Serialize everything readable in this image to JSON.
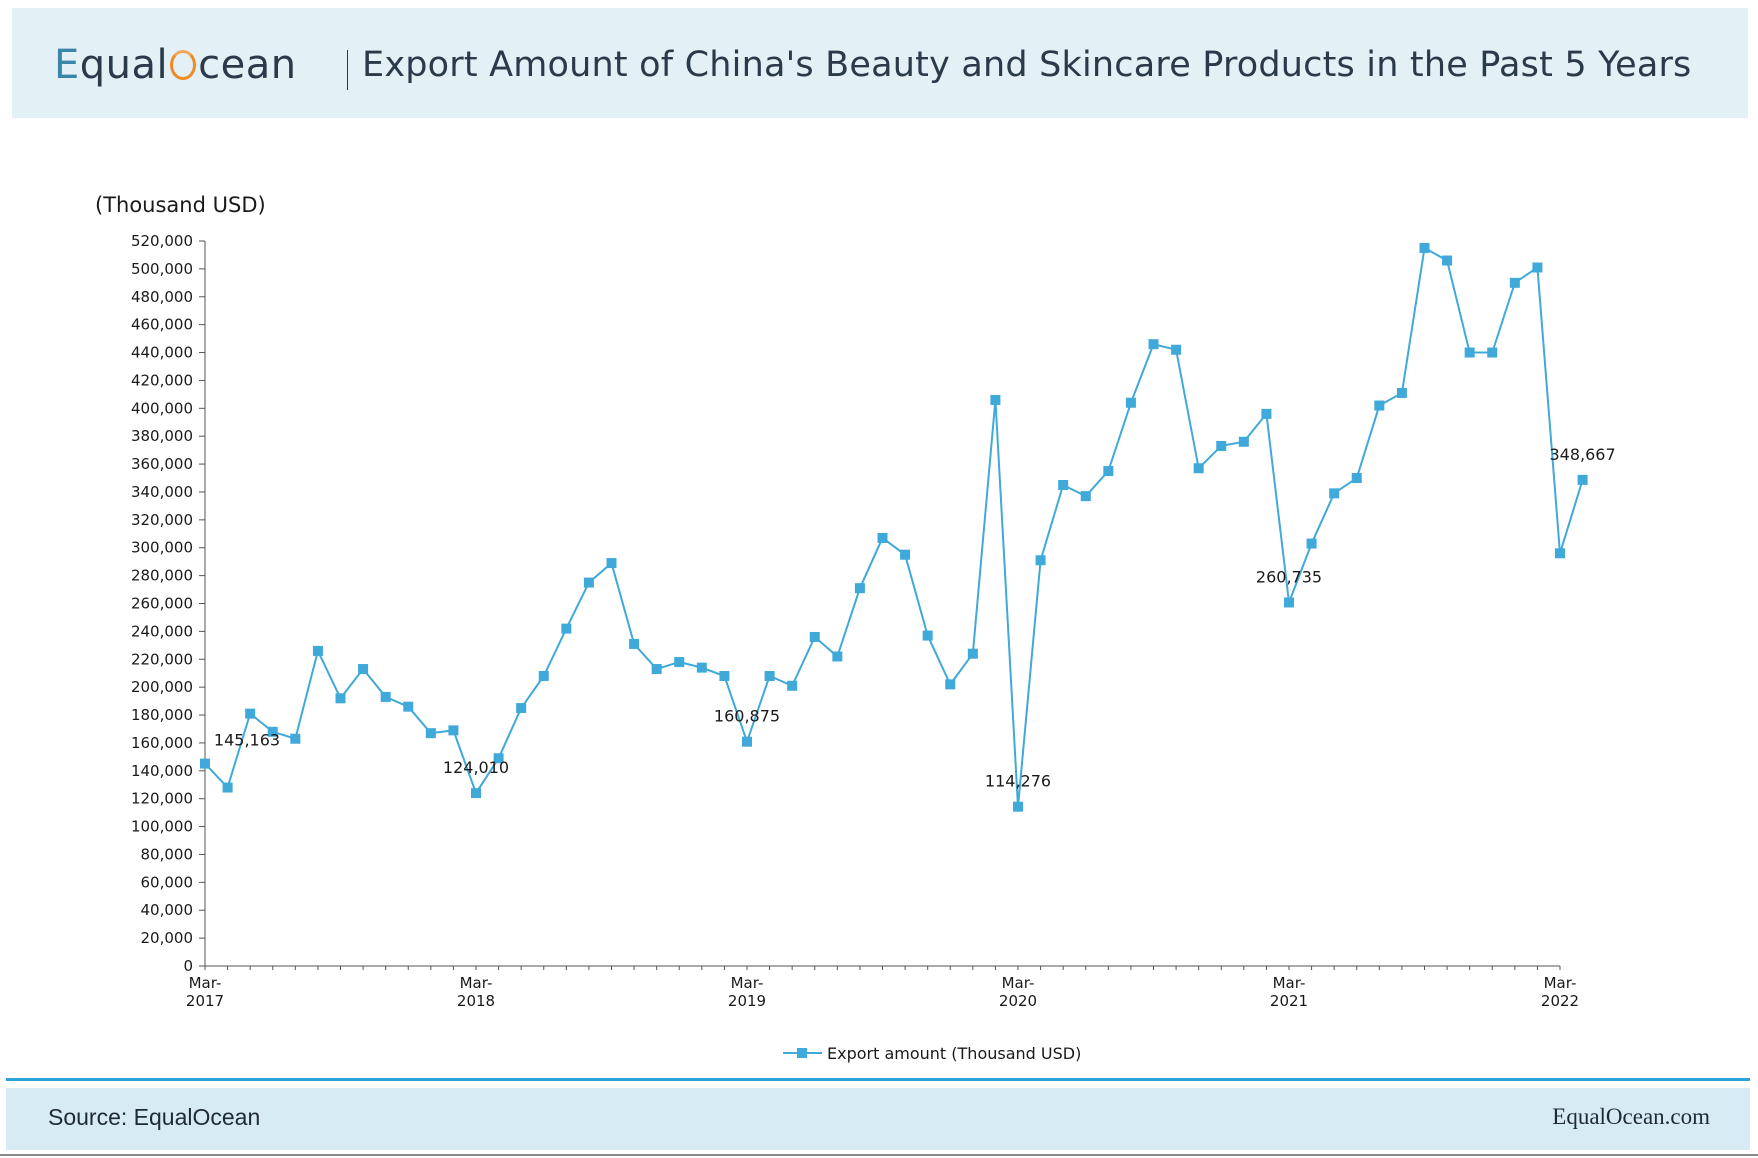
{
  "header": {
    "logo_text": "EqualOcean",
    "title": "Export Amount of China's Beauty and Skincare Products in the Past 5 Years"
  },
  "footer": {
    "source": "Source: EqualOcean",
    "site": "EqualOcean.com"
  },
  "colors": {
    "series": "#3fa9d9",
    "header_bg": "#e3f1f7",
    "footer_bg": "#d7ebf4",
    "accent_rule": "#2aa4d8",
    "logo_o": "#f08a24"
  },
  "chart_data": {
    "type": "line",
    "title": "Export Amount of China's Beauty and Skincare Products in the Past 5 Years",
    "ylabel": "(Thousand USD)",
    "xlabel": "",
    "ylim": [
      0,
      520000
    ],
    "ytick_step": 20000,
    "grid": false,
    "legend": "bottom-center",
    "x_tick_labels": [
      {
        "month": "Mar-",
        "year": "2017"
      },
      {
        "month": "Mar-",
        "year": "2018"
      },
      {
        "month": "Mar-",
        "year": "2019"
      },
      {
        "month": "Mar-",
        "year": "2020"
      },
      {
        "month": "Mar-",
        "year": "2021"
      },
      {
        "month": "Mar-",
        "year": "2022"
      }
    ],
    "x_start": "Mar-2017",
    "x_end": "Mar-2022",
    "series": [
      {
        "name": "Export amount (Thousand USD)",
        "marker": "square",
        "values": [
          145163,
          128000,
          181000,
          168000,
          163000,
          226000,
          192000,
          213000,
          193000,
          186000,
          167000,
          169000,
          124010,
          149000,
          185000,
          208000,
          242000,
          275000,
          289000,
          231000,
          213000,
          218000,
          214000,
          208000,
          160875,
          208000,
          201000,
          236000,
          222000,
          271000,
          307000,
          295000,
          237000,
          202000,
          224000,
          406000,
          114276,
          291000,
          345000,
          337000,
          355000,
          404000,
          446000,
          442000,
          357000,
          373000,
          376000,
          396000,
          260735,
          303000,
          339000,
          350000,
          402000,
          411000,
          515000,
          506000,
          440000,
          440000,
          490000,
          501000,
          296000,
          348667
        ]
      }
    ],
    "annotations": [
      {
        "index": 0,
        "text": "145,163"
      },
      {
        "index": 12,
        "text": "124,010"
      },
      {
        "index": 24,
        "text": "160,875"
      },
      {
        "index": 36,
        "text": "114,276"
      },
      {
        "index": 48,
        "text": "260,735"
      },
      {
        "index": 61,
        "text": "348,667"
      }
    ]
  }
}
